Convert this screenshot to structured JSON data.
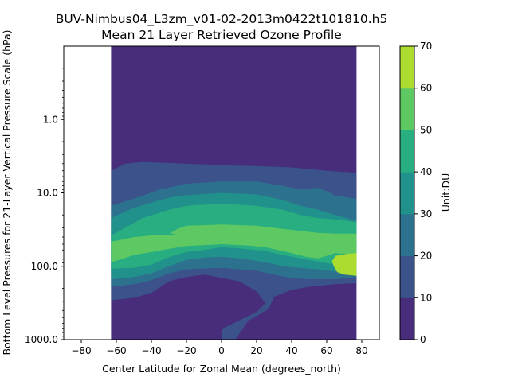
{
  "chart_data": {
    "type": "heatmap",
    "plot_kind": "filled-contour",
    "title": "BUV-Nimbus04_L3zm_v01-02-2013m0422t101810.h5",
    "subtitle": "Mean 21 Layer Retrieved Ozone Profile",
    "xlabel": "Center Latitude for Zonal Mean (degrees_north)",
    "ylabel": "Bottom Level Pressures for 21-Layer Vertical Pressure Scale (hPa)",
    "colorbar_label": "Unit:DU",
    "x_ticks": [
      "−80",
      "−60",
      "−40",
      "−20",
      "0",
      "20",
      "40",
      "60",
      "80"
    ],
    "y_ticks": [
      "1.0",
      "10.0",
      "100.0",
      "1000.0"
    ],
    "xlim": [
      -90,
      90
    ],
    "ylim_hpa": [
      0.1,
      1000
    ],
    "y_scale": "log",
    "y_inverted": true,
    "data_lat_range": [
      -63,
      77
    ],
    "levels": [
      0,
      10,
      20,
      30,
      40,
      50,
      60,
      70
    ],
    "level_labels": [
      "0",
      "10",
      "20",
      "30",
      "40",
      "50",
      "60",
      "70"
    ],
    "level_colors": [
      "#472d7b",
      "#3b528b",
      "#2c728e",
      "#21918c",
      "#28ae80",
      "#5ec962",
      "#addc30"
    ],
    "dominant_features": [
      {
        "band": "10-20",
        "pressure_hpa": [
          4,
          170
        ]
      },
      {
        "band": "30-40",
        "pressure_hpa": [
          18,
          70
        ]
      },
      {
        "band": "40-50",
        "pressure_hpa": [
          25,
          50
        ]
      },
      {
        "band": "50-60",
        "pressure_hpa": [
          70,
          160
        ],
        "lat": [
          65,
          77
        ]
      }
    ]
  }
}
